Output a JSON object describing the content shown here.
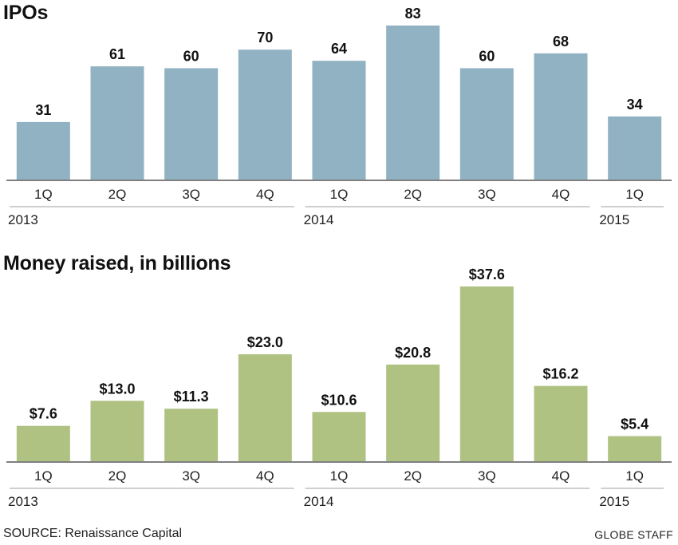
{
  "chart_data": [
    {
      "type": "bar",
      "title": "IPOs",
      "categories": [
        "1Q",
        "2Q",
        "3Q",
        "4Q",
        "1Q",
        "2Q",
        "3Q",
        "4Q",
        "1Q"
      ],
      "years": [
        "2013",
        "2014",
        "2015"
      ],
      "values": [
        31,
        61,
        60,
        70,
        64,
        83,
        60,
        68,
        34
      ],
      "value_labels": [
        "31",
        "61",
        "60",
        "70",
        "64",
        "83",
        "60",
        "68",
        "34"
      ],
      "bar_color": "#91b2c2",
      "grid": false,
      "ylim": [
        0,
        83
      ]
    },
    {
      "type": "bar",
      "title": "Money raised, in billions",
      "categories": [
        "1Q",
        "2Q",
        "3Q",
        "4Q",
        "1Q",
        "2Q",
        "3Q",
        "4Q",
        "1Q"
      ],
      "years": [
        "2013",
        "2014",
        "2015"
      ],
      "values": [
        7.6,
        13.0,
        11.3,
        23.0,
        10.6,
        20.8,
        37.6,
        16.2,
        5.4
      ],
      "value_labels": [
        "$7.6",
        "$13.0",
        "$11.3",
        "$23.0",
        "$10.6",
        "$20.8",
        "$37.6",
        "$16.2",
        "$5.4"
      ],
      "bar_color": "#afc282",
      "grid": false,
      "ylim": [
        0,
        37.6
      ]
    }
  ],
  "footer": {
    "source": "SOURCE: Renaissance Capital",
    "credit": "GLOBE STAFF"
  }
}
